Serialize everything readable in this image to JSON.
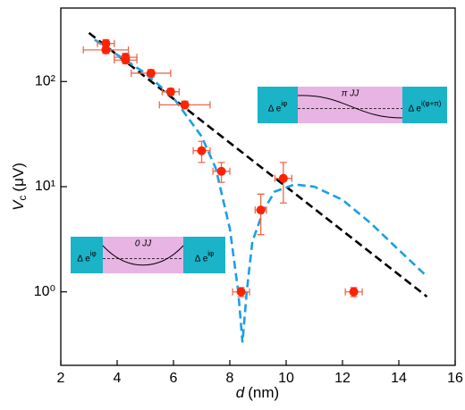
{
  "chart_data": {
    "type": "scatter",
    "xlabel": {
      "symbol": "d",
      "unit": "(nm)"
    },
    "ylabel": {
      "symbol": "V",
      "subscript": "c",
      "unit": "(μV)"
    },
    "xlim": [
      2,
      16
    ],
    "ylim": [
      0.2,
      500
    ],
    "log_y": true,
    "xticks": [
      2,
      4,
      6,
      8,
      10,
      12,
      14,
      16
    ],
    "yticks": [
      {
        "value": 1,
        "label": "10⁰"
      },
      {
        "value": 10,
        "label": "10¹"
      },
      {
        "value": 100,
        "label": "10²"
      }
    ],
    "series": [
      {
        "type": "line",
        "color": "#000000",
        "dash": true,
        "x": [
          3,
          15
        ],
        "values": [
          290,
          0.9
        ]
      },
      {
        "type": "line",
        "color": "#1a9fe6",
        "dash": true,
        "x": [
          3.2,
          4,
          5,
          6,
          7,
          7.5,
          8,
          8.3,
          8.45,
          8.6,
          8.8,
          9.2,
          9.6,
          10.3,
          11,
          12,
          13,
          14,
          15
        ],
        "values": [
          250,
          180,
          120,
          70,
          30,
          15,
          4,
          1,
          0.33,
          1,
          3,
          6,
          9,
          10.5,
          10,
          7.5,
          4.5,
          2.5,
          1.4
        ]
      },
      {
        "type": "scatter",
        "color": "#ff2200",
        "errcolor": "#ea6a4e",
        "x": [
          3.6,
          3.6,
          4.3,
          4.3,
          5.2,
          5.9,
          6.4,
          7.0,
          7.7,
          8.4,
          9.1,
          9.9,
          12.4
        ],
        "values": [
          230,
          200,
          170,
          160,
          120,
          80,
          60,
          22,
          14,
          1,
          6,
          12,
          1
        ],
        "xerr": [
          0.3,
          0.8,
          0.4,
          0.4,
          0.7,
          0.3,
          0.9,
          0.3,
          0.3,
          0.3,
          0.2,
          0.3,
          0.3
        ],
        "yerr": [
          20,
          15,
          15,
          12,
          10,
          6,
          5,
          5,
          3,
          0.1,
          2.5,
          5,
          0.1
        ]
      }
    ],
    "insets": [
      {
        "left": {
          "base": "Δ e",
          "sup": "iφ"
        },
        "middle": "π JJ",
        "right": {
          "base": "Δ e",
          "sup": "i(φ+π)"
        }
      },
      {
        "left": {
          "base": "Δ e",
          "sup": "iφ"
        },
        "middle": "0 JJ",
        "right": {
          "base": "Δ e",
          "sup": "iφ"
        }
      }
    ]
  }
}
